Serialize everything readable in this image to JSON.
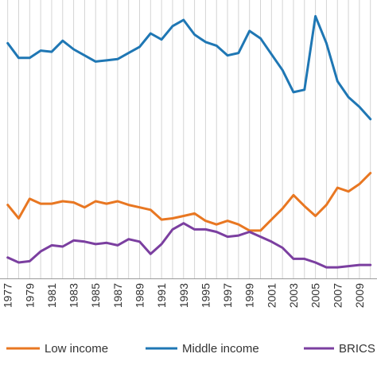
{
  "chart_data": {
    "type": "line",
    "x": [
      1977,
      1978,
      1979,
      1980,
      1981,
      1982,
      1983,
      1984,
      1985,
      1986,
      1987,
      1988,
      1989,
      1990,
      1991,
      1992,
      1993,
      1994,
      1995,
      1996,
      1997,
      1998,
      1999,
      2000,
      2001,
      2002,
      2003,
      2004,
      2005,
      2006,
      2007,
      2008,
      2009,
      2010
    ],
    "tick_labels": [
      "1977",
      "1979",
      "1981",
      "1983",
      "1985",
      "1987",
      "1989",
      "1991",
      "1993",
      "1995",
      "1997",
      "1999",
      "2001",
      "2003",
      "2005",
      "2007",
      "2009"
    ],
    "xlim": [
      1976.3,
      2010.6
    ],
    "ylim": [
      0,
      100
    ],
    "grid": "vertical",
    "legend": "bottom",
    "series": [
      {
        "name": "Low income",
        "color": "#E87722",
        "values": [
          30.0,
          24.5,
          32.5,
          30.5,
          30.5,
          31.5,
          31.0,
          29.0,
          31.5,
          30.5,
          31.5,
          30.0,
          29.0,
          28.0,
          24.0,
          24.5,
          25.5,
          26.5,
          23.5,
          22.0,
          23.5,
          22.0,
          19.5,
          19.5,
          24.0,
          28.5,
          34.0,
          29.5,
          25.5,
          30.0,
          37.0,
          35.5,
          38.5,
          43.0
        ]
      },
      {
        "name": "Middle income",
        "color": "#1F77B4",
        "values": [
          96.0,
          90.0,
          90.0,
          93.0,
          92.5,
          97.0,
          93.5,
          91.0,
          88.5,
          89.0,
          89.5,
          92.0,
          94.5,
          100.0,
          97.5,
          103.0,
          105.5,
          99.5,
          96.5,
          95.0,
          91.0,
          92.0,
          101.0,
          98.0,
          91.5,
          85.0,
          76.0,
          77.0,
          107.0,
          96.0,
          80.5,
          74.0,
          70.0,
          65.0
        ]
      },
      {
        "name": "BRICS",
        "color": "#7B3FA0",
        "values": [
          8.5,
          6.5,
          7.0,
          11.0,
          13.5,
          13.0,
          15.5,
          15.0,
          14.0,
          14.5,
          13.5,
          16.0,
          15.0,
          10.0,
          14.0,
          20.0,
          22.5,
          20.0,
          20.0,
          19.0,
          17.0,
          17.5,
          19.0,
          17.0,
          15.0,
          12.5,
          8.0,
          8.0,
          6.5,
          4.5,
          4.5,
          5.0,
          5.5,
          5.5
        ]
      }
    ]
  }
}
